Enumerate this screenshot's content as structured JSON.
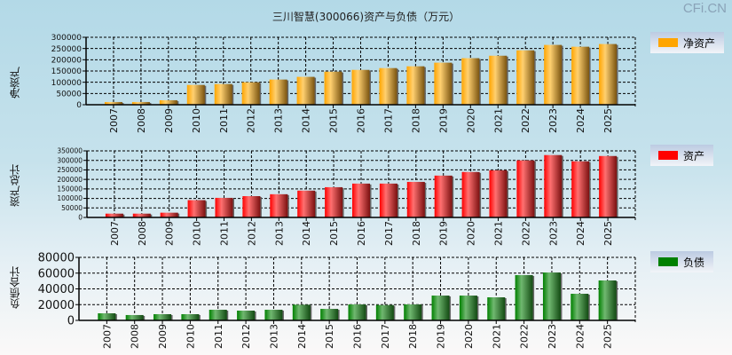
{
  "title": "三川智慧(300066)资产与负债（万元）",
  "logo": "CFi.CN",
  "chart_data": [
    {
      "type": "bar",
      "ylabel": "净资产",
      "legend": "净资产",
      "color": "#ffa500",
      "dark": "#7a5410",
      "light": "#ffd070",
      "ylim": [
        0,
        300000
      ],
      "yticks": [
        0,
        50000,
        100000,
        150000,
        200000,
        250000,
        300000
      ],
      "categories": [
        "2007",
        "2008",
        "2009",
        "2010",
        "2011",
        "2012",
        "2013",
        "2014",
        "2015",
        "2016",
        "2017",
        "2018",
        "2019",
        "2020",
        "2021",
        "2022",
        "2023",
        "2024",
        "2025"
      ],
      "values": [
        12000,
        12000,
        20000,
        88000,
        92000,
        100000,
        112000,
        124000,
        147000,
        155000,
        163000,
        171000,
        187000,
        207000,
        218000,
        242000,
        266000,
        258000,
        270000
      ]
    },
    {
      "type": "bar",
      "ylabel": "资产总计",
      "legend": "资产",
      "color": "#ff0000",
      "dark": "#7a1010",
      "light": "#ff7070",
      "ylim": [
        0,
        350000
      ],
      "yticks": [
        0,
        50000,
        100000,
        150000,
        200000,
        250000,
        300000,
        350000
      ],
      "categories": [
        "2007",
        "2008",
        "2009",
        "2010",
        "2011",
        "2012",
        "2013",
        "2014",
        "2015",
        "2016",
        "2017",
        "2018",
        "2019",
        "2020",
        "2021",
        "2022",
        "2023",
        "2024",
        "2025"
      ],
      "values": [
        20000,
        20000,
        25000,
        91000,
        103000,
        112000,
        122000,
        141000,
        159000,
        178000,
        178000,
        187000,
        220000,
        239000,
        248000,
        300000,
        328000,
        295000,
        323000
      ]
    },
    {
      "type": "bar",
      "ylabel": "负债合计",
      "legend": "负债",
      "color": "#008000",
      "dark": "#124a12",
      "light": "#70b870",
      "ylim": [
        0,
        80000
      ],
      "yticks": [
        0,
        20000,
        40000,
        60000,
        80000
      ],
      "categories": [
        "2007",
        "2008",
        "2009",
        "2010",
        "2011",
        "2012",
        "2013",
        "2014",
        "2015",
        "2016",
        "2017",
        "2018",
        "2019",
        "2020",
        "2021",
        "2022",
        "2023",
        "2024",
        "2025"
      ],
      "values": [
        9000,
        6800,
        7900,
        7900,
        13500,
        12400,
        13500,
        19900,
        14600,
        20300,
        19500,
        20300,
        31500,
        31500,
        29300,
        57500,
        60800,
        33800,
        50700
      ]
    }
  ]
}
